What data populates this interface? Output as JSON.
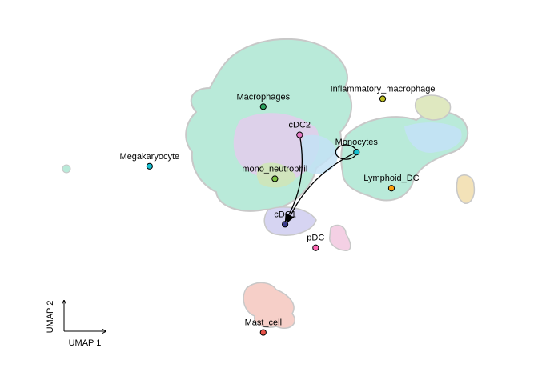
{
  "chart_data": {
    "type": "scatter",
    "title": "",
    "xlabel": "UMAP 1",
    "ylabel": "UMAP 2",
    "grid": false,
    "legend": "none",
    "clusters": [
      {
        "name": "Macrophages",
        "x": -1.0,
        "y": 5.8,
        "color": "#2ca25f"
      },
      {
        "name": "cDC2",
        "x": 1.5,
        "y": 4.0,
        "color": "#e377c2"
      },
      {
        "name": "Megakaryocyte",
        "x": -8.8,
        "y": 2.0,
        "color": "#17becf"
      },
      {
        "name": "mono_neutrophil",
        "x": -0.2,
        "y": 1.2,
        "color": "#7cc242"
      },
      {
        "name": "cDC1",
        "x": 0.5,
        "y": -1.7,
        "color": "#3a3a8a"
      },
      {
        "name": "Inflammatory_macrophage",
        "x": 7.2,
        "y": 6.3,
        "color": "#bcbd22"
      },
      {
        "name": "Monocytes",
        "x": 5.4,
        "y": 2.9,
        "color": "#17becf"
      },
      {
        "name": "Lymphoid_DC",
        "x": 7.8,
        "y": 0.6,
        "color": "#ff9f0a"
      },
      {
        "name": "pDC",
        "x": 2.6,
        "y": -3.2,
        "color": "#ff69b4"
      },
      {
        "name": "Mast_cell",
        "x": -1.0,
        "y": -8.6,
        "color": "#e8534a"
      }
    ],
    "transitions": [
      {
        "from": "cDC2",
        "to": "cDC1"
      },
      {
        "from": "Monocytes",
        "to": "cDC1"
      },
      {
        "from": "Monocytes",
        "to": "Monocytes"
      }
    ]
  }
}
